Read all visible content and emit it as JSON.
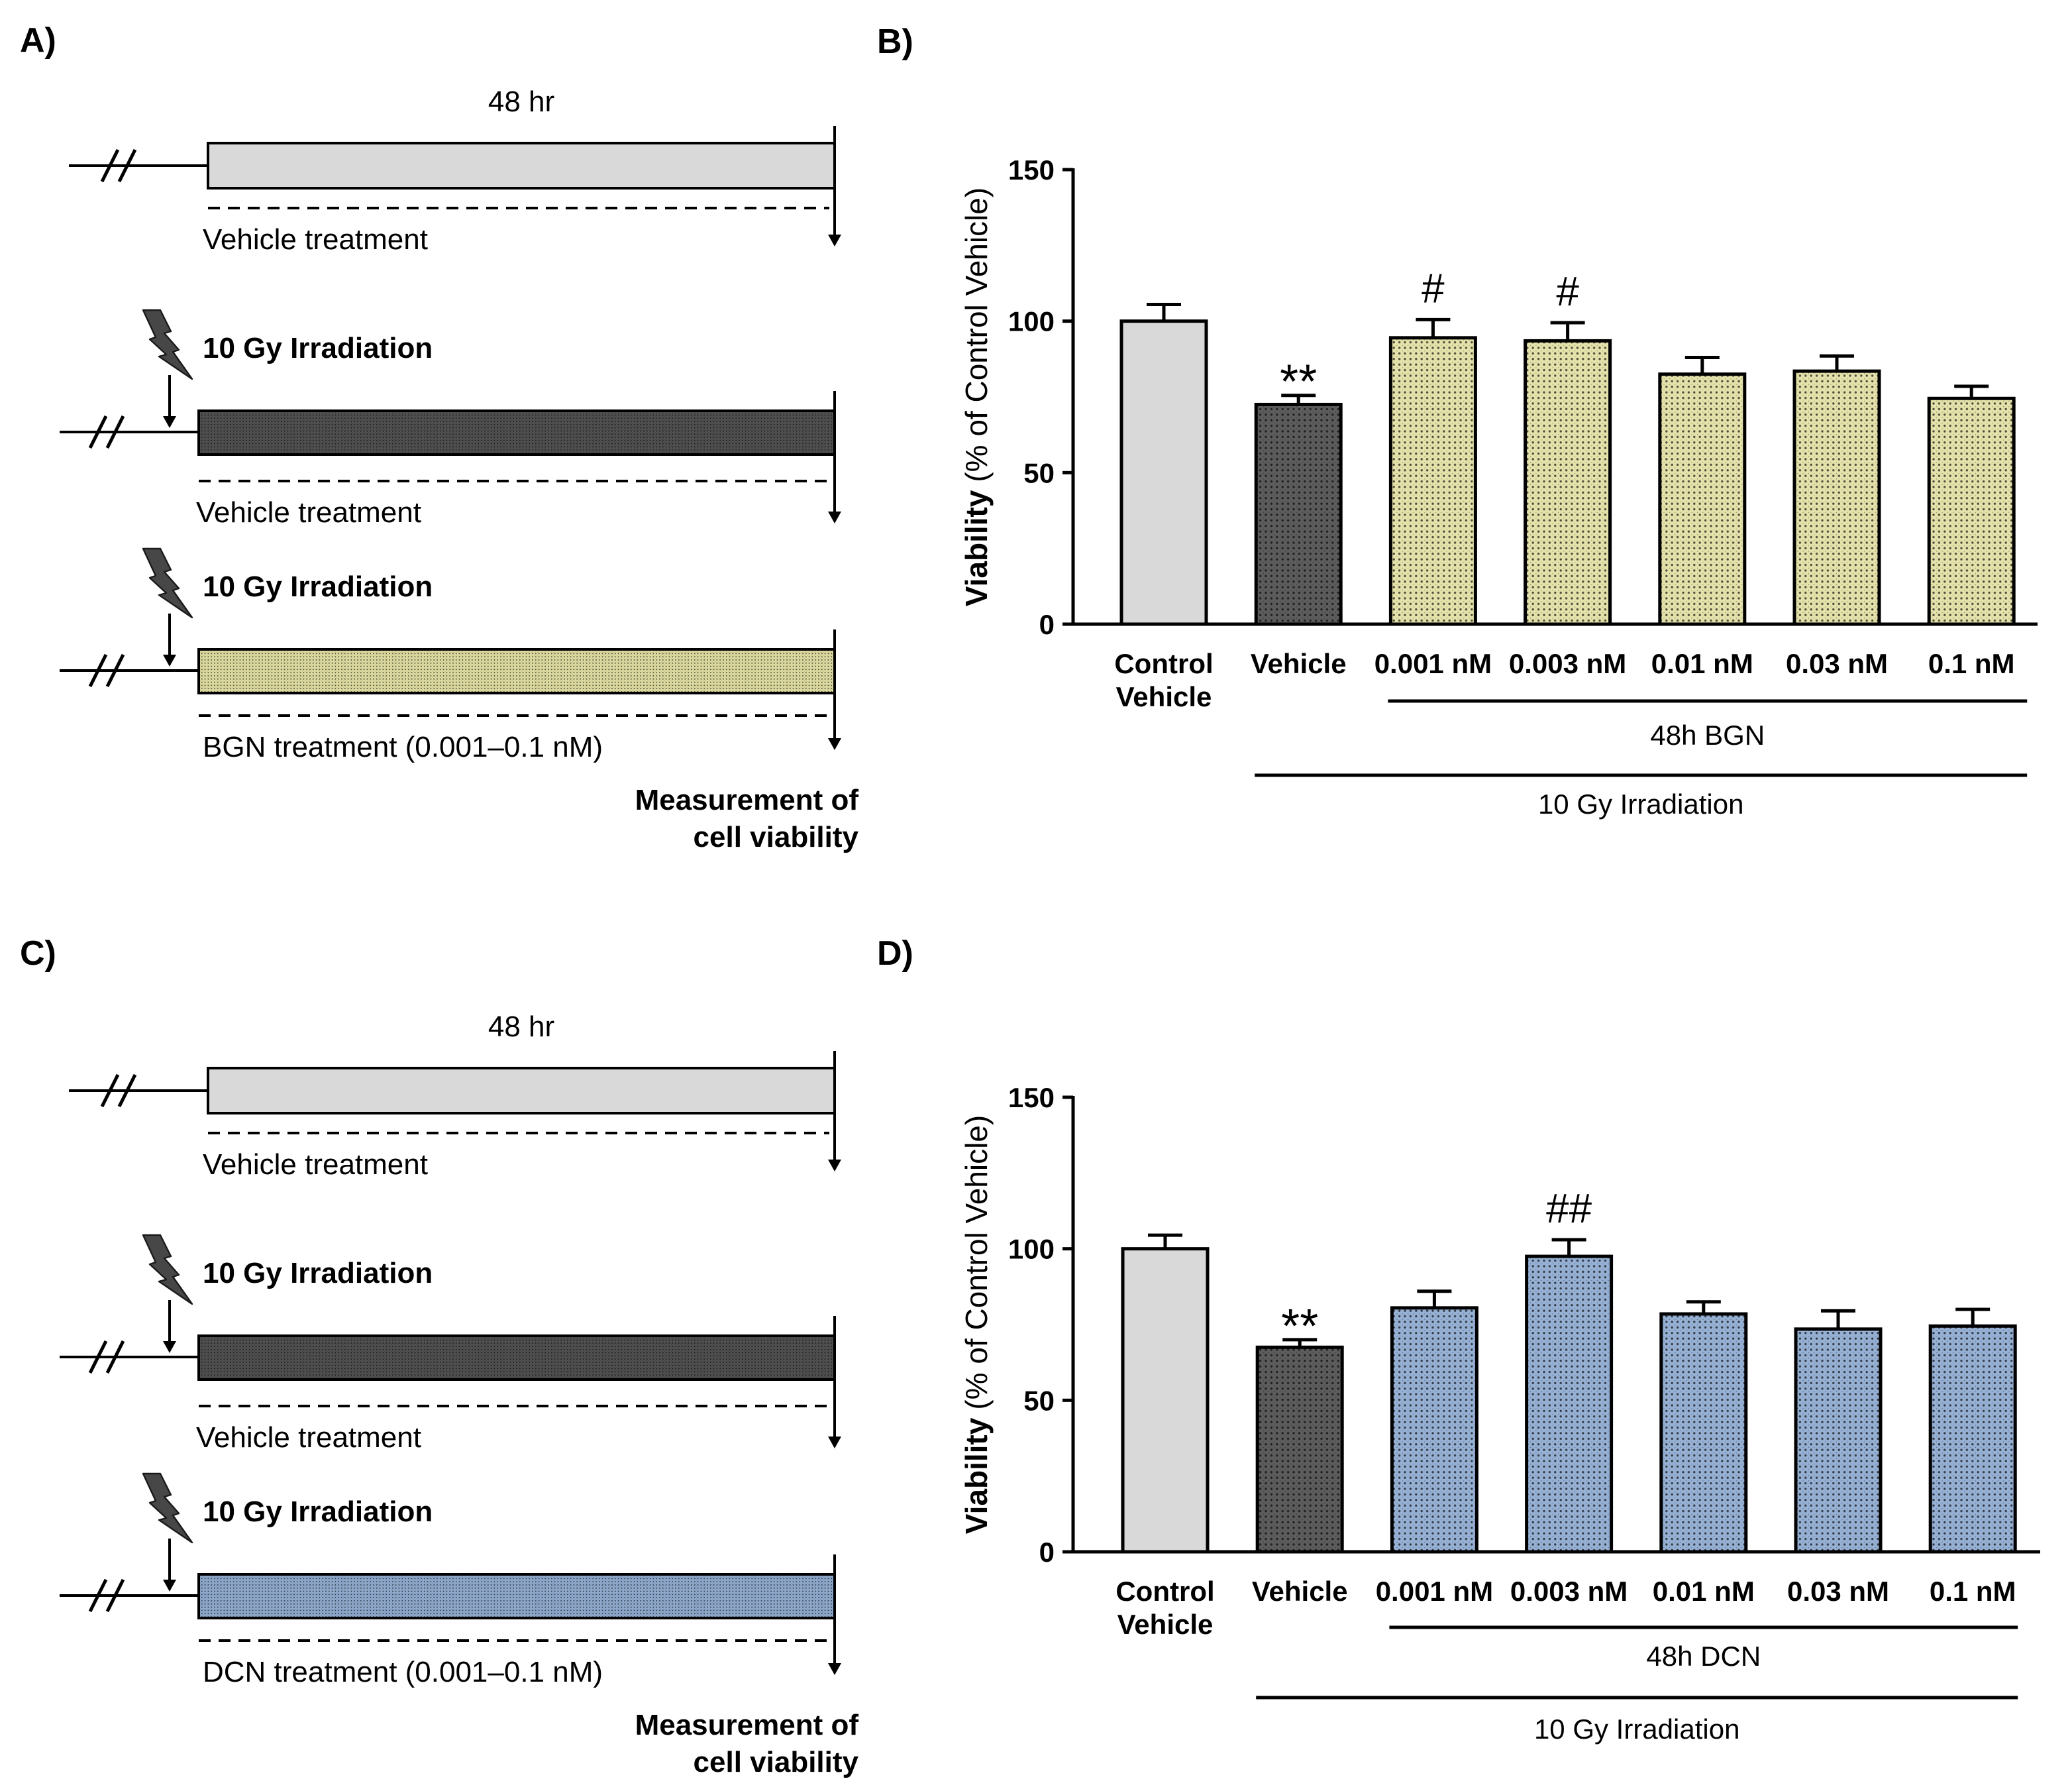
{
  "diagrams": [
    {
      "panel_label": "A)",
      "duration_label": "48 hr",
      "rows": [
        {
          "treatment_label": "Vehicle treatment",
          "bar_color": "#d9d9d9",
          "stippled": false
        },
        {
          "icon": "lightning-icon",
          "irradiation_label": "10 Gy Irradiation",
          "treatment_label": "Vehicle treatment",
          "bar_color": "#4f4f4f",
          "stippled": true
        },
        {
          "icon": "lightning-icon",
          "irradiation_label": "10 Gy Irradiation",
          "treatment_label": "BGN treatment (0.001–0.1 nM)",
          "bar_color": "#dcda9f",
          "stippled": true
        }
      ],
      "endpoint_label": [
        "Measurement of",
        "cell viability"
      ]
    },
    {
      "panel_label": "C)",
      "duration_label": "48 hr",
      "rows": [
        {
          "treatment_label": "Vehicle treatment",
          "bar_color": "#d9d9d9",
          "stippled": false
        },
        {
          "icon": "lightning-icon",
          "irradiation_label": "10 Gy Irradiation",
          "treatment_label": "Vehicle treatment",
          "bar_color": "#4f4f4f",
          "stippled": true
        },
        {
          "icon": "lightning-icon",
          "irradiation_label": "10 Gy Irradiation",
          "treatment_label": "DCN treatment (0.001–0.1 nM)",
          "bar_color": "#8ea8cb",
          "stippled": true
        }
      ],
      "endpoint_label": [
        "Measurement of",
        "cell viability"
      ]
    }
  ],
  "chart_data": [
    {
      "panel_label": "B)",
      "type": "bar",
      "categories": [
        "Control\nVehicle",
        "Vehicle",
        "0.001 nM",
        "0.003 nM",
        "0.01 nM",
        "0.03 nM",
        "0.1 nM"
      ],
      "values": [
        100,
        72.5,
        94.5,
        93.5,
        82.5,
        83.5,
        74.5
      ],
      "errors": [
        5.5,
        3,
        6,
        6,
        5.5,
        5,
        4
      ],
      "bar_colors": [
        "#d9d9d9",
        "#5c5c5c",
        "#e4e2aa",
        "#e4e2aa",
        "#e4e2aa",
        "#e4e2aa",
        "#e4e2aa"
      ],
      "bar_stippled": [
        false,
        true,
        true,
        true,
        true,
        true,
        true
      ],
      "annotations": [
        {
          "index": 1,
          "text": "**"
        },
        {
          "index": 2,
          "text": "#"
        },
        {
          "index": 3,
          "text": "#"
        }
      ],
      "ylabel_bold": "Viability",
      "ylabel_rest": "(% of Control Vehicle)",
      "ylim": [
        0,
        150
      ],
      "yticks": [
        0,
        50,
        100,
        150
      ],
      "groups": [
        {
          "label": "48h BGN",
          "from": 2,
          "to": 6
        },
        {
          "label": "10 Gy Irradiation",
          "from": 1,
          "to": 6
        }
      ]
    },
    {
      "panel_label": "D)",
      "type": "bar",
      "categories": [
        "Control\nVehicle",
        "Vehicle",
        "0.001 nM",
        "0.003 nM",
        "0.01 nM",
        "0.03 nM",
        "0.1 nM"
      ],
      "values": [
        100,
        67.5,
        80.5,
        97.5,
        78.5,
        73.5,
        74.5
      ],
      "errors": [
        4.5,
        2.5,
        5.5,
        5.5,
        4,
        6,
        5.5
      ],
      "bar_colors": [
        "#d9d9d9",
        "#5c5c5c",
        "#96b0d4",
        "#96b0d4",
        "#96b0d4",
        "#96b0d4",
        "#96b0d4"
      ],
      "bar_stippled": [
        false,
        true,
        true,
        true,
        true,
        true,
        true
      ],
      "annotations": [
        {
          "index": 1,
          "text": "**"
        },
        {
          "index": 3,
          "text": "##"
        }
      ],
      "ylabel_bold": "Viability",
      "ylabel_rest": "(% of Control Vehicle)",
      "ylim": [
        0,
        150
      ],
      "yticks": [
        0,
        50,
        100,
        150
      ],
      "groups": [
        {
          "label": "48h DCN",
          "from": 2,
          "to": 6
        },
        {
          "label": "10 Gy Irradiation",
          "from": 1,
          "to": 6
        }
      ]
    }
  ]
}
